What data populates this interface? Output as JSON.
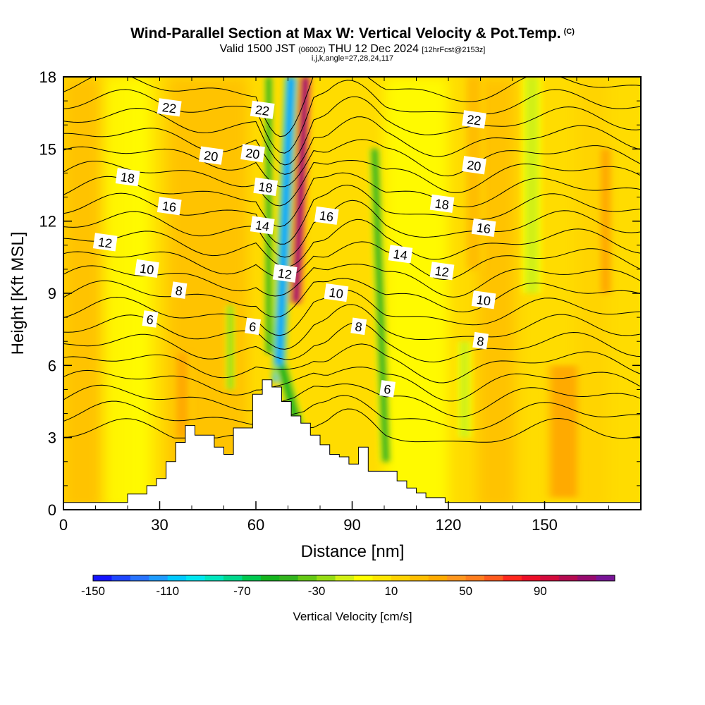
{
  "header": {
    "title": "Wind-Parallel Section at Max W: Vertical Velocity & Pot.Temp.",
    "copyright": "(C)",
    "valid_prefix": "Valid 1500 JST",
    "valid_utc": "(0600Z)",
    "valid_date": "THU 12 Dec 2024",
    "forecast": "[12hrFcst@2153z]",
    "index_line": "i,j,k,angle=27,28,24,117"
  },
  "colorbar": {
    "label": "Vertical Velocity [cm/s]",
    "tick_labels": [
      "-150",
      "-110",
      "-70",
      "-30",
      "10",
      "50",
      "90"
    ],
    "levels": [
      -150,
      -140,
      -130,
      -120,
      -110,
      -100,
      -90,
      -80,
      -70,
      -60,
      -50,
      -40,
      -30,
      -20,
      -10,
      0,
      10,
      20,
      30,
      40,
      50,
      60,
      70,
      80,
      90,
      100,
      110,
      120
    ],
    "colors": [
      "#1414ff",
      "#1e46ff",
      "#2873ff",
      "#1e9bff",
      "#00c8ff",
      "#00e6f0",
      "#00e6be",
      "#00d78c",
      "#00c850",
      "#14b41e",
      "#32b41e",
      "#64c814",
      "#96dc14",
      "#d2f014",
      "#ffff00",
      "#ffe600",
      "#ffd200",
      "#ffbe00",
      "#ffaa00",
      "#ff961e",
      "#ff7d1e",
      "#ff5a1e",
      "#ff281e",
      "#eb0f28",
      "#d20a3c",
      "#b40a50",
      "#960a6e",
      "#781496"
    ]
  },
  "chart_data": {
    "type": "heatmap",
    "title": "Wind-Parallel Section at Max W: Vertical Velocity & Pot.Temp.",
    "xlabel": "Distance [nm]",
    "ylabel": "Height [Kft MSL]",
    "xlim": [
      0,
      180
    ],
    "ylim": [
      0,
      18
    ],
    "x_ticks": [
      "0",
      "30",
      "60",
      "90",
      "120",
      "150"
    ],
    "y_ticks": [
      "0",
      "3",
      "6",
      "9",
      "12",
      "15",
      "18"
    ],
    "contour_label_texts": [
      "6",
      "8",
      "10",
      "12",
      "14",
      "16",
      "18",
      "20",
      "22"
    ],
    "theta_contours": {
      "units": "deg C",
      "levels": [
        4,
        5,
        6,
        7,
        8,
        9,
        10,
        11,
        12,
        13,
        14,
        15,
        16,
        17,
        18,
        19,
        20,
        21,
        22,
        23,
        24
      ],
      "labels": [
        {
          "text": "22",
          "x": 33,
          "y": 16.7
        },
        {
          "text": "20",
          "x": 46,
          "y": 14.7
        },
        {
          "text": "18",
          "x": 20,
          "y": 13.8
        },
        {
          "text": "16",
          "x": 33,
          "y": 12.6
        },
        {
          "text": "12",
          "x": 13,
          "y": 11.1
        },
        {
          "text": "10",
          "x": 26,
          "y": 10.0
        },
        {
          "text": "8",
          "x": 36,
          "y": 9.1
        },
        {
          "text": "6",
          "x": 27,
          "y": 7.9
        },
        {
          "text": "22",
          "x": 62,
          "y": 16.6
        },
        {
          "text": "20",
          "x": 59,
          "y": 14.8
        },
        {
          "text": "18",
          "x": 63,
          "y": 13.4
        },
        {
          "text": "14",
          "x": 62,
          "y": 11.8
        },
        {
          "text": "12",
          "x": 69,
          "y": 9.8
        },
        {
          "text": "16",
          "x": 82,
          "y": 12.2
        },
        {
          "text": "10",
          "x": 85,
          "y": 9.0
        },
        {
          "text": "8",
          "x": 92,
          "y": 7.6
        },
        {
          "text": "6",
          "x": 59,
          "y": 7.6
        },
        {
          "text": "6",
          "x": 101,
          "y": 5.0
        },
        {
          "text": "14",
          "x": 105,
          "y": 10.6
        },
        {
          "text": "12",
          "x": 118,
          "y": 9.9
        },
        {
          "text": "10",
          "x": 131,
          "y": 8.7
        },
        {
          "text": "8",
          "x": 130,
          "y": 7.0
        },
        {
          "text": "16",
          "x": 131,
          "y": 11.7
        },
        {
          "text": "18",
          "x": 118,
          "y": 12.7
        },
        {
          "text": "20",
          "x": 128,
          "y": 14.3
        },
        {
          "text": "22",
          "x": 128,
          "y": 16.2
        }
      ]
    },
    "vertical_velocity_features": [
      {
        "name": "downdraft",
        "x_top": 71,
        "x_bottom": 67,
        "width": 3.2,
        "y_from": 5.3,
        "y_to": 18,
        "w_cm_s": -120
      },
      {
        "name": "updraft",
        "x_top": 75.5,
        "x_bottom": 72.5,
        "width": 3,
        "y_from": 8.6,
        "y_to": 18,
        "w_cm_s": 115
      },
      {
        "name": "downdraft",
        "x_top": 97,
        "x_bottom": 100.5,
        "width": 2.6,
        "y_from": 2,
        "y_to": 15,
        "w_cm_s": -55
      },
      {
        "name": "downdraft",
        "x_top": 68,
        "x_bottom": 75,
        "width": 3.2,
        "y_from": 2.5,
        "y_to": 6,
        "w_cm_s": -65
      },
      {
        "name": "downdraft",
        "x_top": 64,
        "x_bottom": 64,
        "width": 2,
        "y_from": 6.5,
        "y_to": 18,
        "w_cm_s": -60
      },
      {
        "name": "updraft",
        "x_top": 159,
        "x_bottom": 159,
        "width": 4,
        "y_from": 2,
        "y_to": 5.5,
        "w_cm_s": 55
      },
      {
        "name": "updraft",
        "x_top": 156,
        "x_bottom": 156,
        "width": 8,
        "y_from": 0.5,
        "y_to": 6,
        "w_cm_s": 35
      },
      {
        "name": "updraft",
        "x_top": 37,
        "x_bottom": 37,
        "width": 4,
        "y_from": 3,
        "y_to": 6.5,
        "w_cm_s": 35
      },
      {
        "name": "downdraft",
        "x_top": 146,
        "x_bottom": 146,
        "width": 4,
        "y_from": 9,
        "y_to": 18,
        "w_cm_s": -25
      },
      {
        "name": "updraft",
        "x_top": 128,
        "x_bottom": 128,
        "width": 4,
        "y_from": 10,
        "y_to": 18,
        "w_cm_s": 25
      },
      {
        "name": "updraft",
        "x_top": 169,
        "x_bottom": 169,
        "width": 3,
        "y_from": 9,
        "y_to": 15,
        "w_cm_s": 30
      },
      {
        "name": "downdraft",
        "x_top": 125,
        "x_bottom": 125,
        "width": 3,
        "y_from": 3,
        "y_to": 7,
        "w_cm_s": -20
      },
      {
        "name": "downdraft",
        "x_top": 52,
        "x_bottom": 52,
        "width": 2,
        "y_from": 5,
        "y_to": 8.5,
        "w_cm_s": -35
      }
    ],
    "terrain_profile": {
      "x": [
        0,
        20,
        20,
        26,
        26,
        29,
        29,
        32,
        32,
        35,
        35,
        38,
        38,
        41,
        41,
        47,
        47,
        50,
        50,
        53,
        53,
        59,
        59,
        62,
        62,
        65,
        65,
        68,
        68,
        71,
        71,
        74,
        74,
        77,
        77,
        80,
        80,
        83,
        83,
        86,
        86,
        89,
        89,
        92,
        92,
        95,
        95,
        104,
        104,
        107,
        107,
        110,
        110,
        113,
        113,
        119,
        119,
        122,
        122,
        180
      ],
      "y": [
        0.3,
        0.3,
        0.65,
        0.65,
        1.0,
        1.0,
        1.3,
        1.3,
        2.0,
        2.0,
        2.8,
        2.8,
        3.5,
        3.5,
        3.1,
        3.1,
        2.6,
        2.6,
        2.3,
        2.3,
        3.4,
        3.4,
        4.8,
        4.8,
        5.4,
        5.4,
        5.1,
        5.1,
        4.5,
        4.5,
        3.9,
        3.9,
        3.6,
        3.6,
        3.1,
        3.1,
        2.7,
        2.7,
        2.3,
        2.3,
        2.2,
        2.2,
        1.9,
        1.9,
        2.6,
        2.6,
        1.6,
        1.6,
        1.2,
        1.2,
        0.9,
        0.9,
        0.7,
        0.7,
        0.5,
        0.5,
        0.3,
        0.3,
        0.3,
        0.3
      ]
    }
  }
}
